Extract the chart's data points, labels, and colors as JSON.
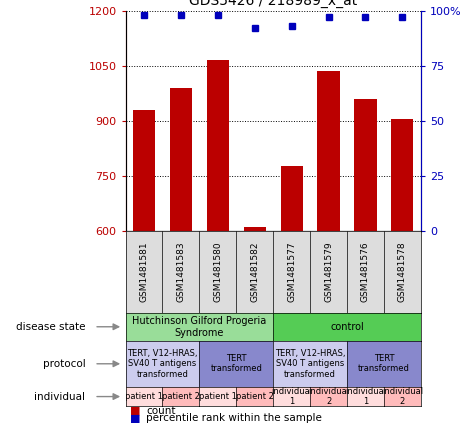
{
  "title": "GDS5426 / 218989_x_at",
  "samples": [
    "GSM1481581",
    "GSM1481583",
    "GSM1481580",
    "GSM1481582",
    "GSM1481577",
    "GSM1481579",
    "GSM1481576",
    "GSM1481578"
  ],
  "counts": [
    930,
    990,
    1065,
    610,
    775,
    1035,
    960,
    905
  ],
  "percentiles": [
    98,
    98,
    98,
    92,
    93,
    97,
    97,
    97
  ],
  "ylim_left": [
    600,
    1200
  ],
  "ylim_right": [
    0,
    100
  ],
  "yticks_left": [
    600,
    750,
    900,
    1050,
    1200
  ],
  "yticks_right": [
    0,
    25,
    50,
    75,
    100
  ],
  "bar_color": "#bb0000",
  "dot_color": "#0000bb",
  "disease_state_row": {
    "groups": [
      {
        "label": "Hutchinson Gilford Progeria\nSyndrome",
        "span": [
          0,
          4
        ],
        "color": "#99dd99"
      },
      {
        "label": "control",
        "span": [
          4,
          8
        ],
        "color": "#55cc55"
      }
    ]
  },
  "protocol_row": {
    "groups": [
      {
        "label": "TERT, V12-HRAS,\nSV40 T antigens\ntransformed",
        "span": [
          0,
          2
        ],
        "color": "#ccccee"
      },
      {
        "label": "TERT\ntransformed",
        "span": [
          2,
          4
        ],
        "color": "#8888cc"
      },
      {
        "label": "TERT, V12-HRAS,\nSV40 T antigens\ntransformed",
        "span": [
          4,
          6
        ],
        "color": "#ccccee"
      },
      {
        "label": "TERT\ntransformed",
        "span": [
          6,
          8
        ],
        "color": "#8888cc"
      }
    ]
  },
  "individual_row": {
    "groups": [
      {
        "label": "patient 1",
        "span": [
          0,
          1
        ],
        "color": "#ffdddd"
      },
      {
        "label": "patient 2",
        "span": [
          1,
          2
        ],
        "color": "#ffbbbb"
      },
      {
        "label": "patient 1",
        "span": [
          2,
          3
        ],
        "color": "#ffdddd"
      },
      {
        "label": "patient 2",
        "span": [
          3,
          4
        ],
        "color": "#ffbbbb"
      },
      {
        "label": "individual\n1",
        "span": [
          4,
          5
        ],
        "color": "#ffdddd"
      },
      {
        "label": "individual\n2",
        "span": [
          5,
          6
        ],
        "color": "#ffbbbb"
      },
      {
        "label": "individual\n1",
        "span": [
          6,
          7
        ],
        "color": "#ffdddd"
      },
      {
        "label": "individual\n2",
        "span": [
          7,
          8
        ],
        "color": "#ffbbbb"
      }
    ]
  },
  "row_labels": [
    "disease state",
    "protocol",
    "individual"
  ],
  "sample_col_color": "#dddddd",
  "fig_width": 4.65,
  "fig_height": 4.23,
  "dpi": 100
}
